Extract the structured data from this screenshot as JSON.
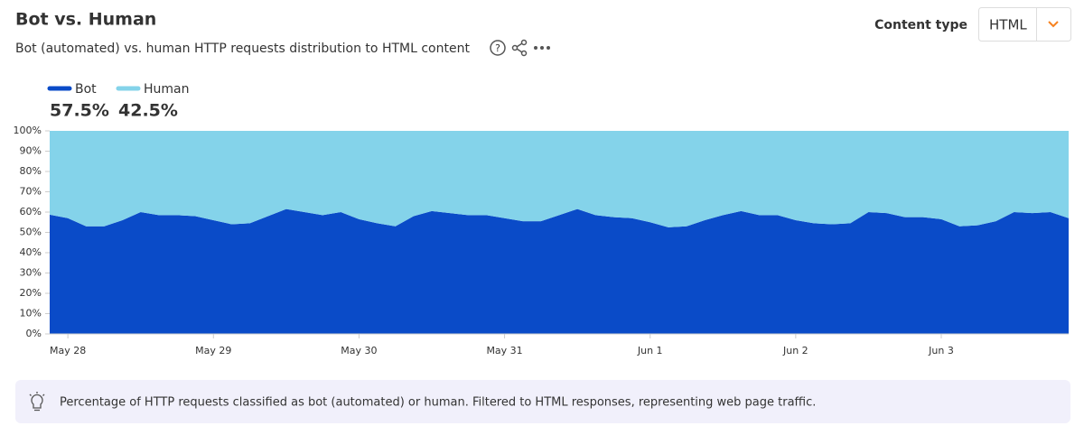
{
  "chart_data": {
    "type": "area",
    "stacked": true,
    "title": "Bot vs. Human",
    "subtitle": "Bot (automated) vs. human HTTP requests distribution to HTML content",
    "control_label": "Content type",
    "control_value": "HTML",
    "note": "Percentage of HTTP requests classified as bot (automated) or human. Filtered to HTML responses, representing web page traffic.",
    "categories": [
      null,
      "May 28",
      null,
      null,
      null,
      null,
      null,
      null,
      null,
      "May 29",
      null,
      null,
      null,
      null,
      null,
      null,
      null,
      "May 30",
      null,
      null,
      null,
      null,
      null,
      null,
      null,
      "May 31",
      null,
      null,
      null,
      null,
      null,
      null,
      null,
      "Jun 1",
      null,
      null,
      null,
      null,
      null,
      null,
      null,
      "Jun 2",
      null,
      null,
      null,
      null,
      null,
      null,
      null,
      "Jun 3",
      null,
      null,
      null,
      null,
      null,
      null,
      null
    ],
    "series": [
      {
        "name": "Bot",
        "color": "#0a4bc8",
        "summary": 57.5,
        "summary_label": "57.5%",
        "values": [
          58.7,
          57,
          53,
          53,
          56,
          60,
          58.5,
          58.5,
          58,
          56,
          54,
          54.5,
          58,
          61.5,
          60,
          58.5,
          60,
          56.5,
          54.5,
          53,
          58,
          60.5,
          59.5,
          58.5,
          58.5,
          57,
          55.5,
          55.5,
          58.5,
          61.5,
          58.5,
          57.5,
          57,
          55,
          52.5,
          53,
          56,
          58.5,
          60.5,
          58.5,
          58.5,
          56,
          54.5,
          54,
          54.5,
          60,
          59.5,
          57.5,
          57.5,
          56.5,
          53,
          53.5,
          55.5,
          60,
          59.5,
          60,
          57
        ]
      },
      {
        "name": "Human",
        "color": "#84d3ea",
        "summary": 42.5,
        "summary_label": "42.5%",
        "values": [
          41.3,
          43,
          47,
          47,
          44,
          40,
          41.5,
          41.5,
          42,
          44,
          46,
          45.5,
          42,
          38.5,
          40,
          41.5,
          40,
          43.5,
          45.5,
          47,
          42,
          39.5,
          40.5,
          41.5,
          41.5,
          43,
          44.5,
          44.5,
          41.5,
          38.5,
          41.5,
          42.5,
          43,
          45,
          47.5,
          47,
          44,
          41.5,
          39.5,
          41.5,
          41.5,
          44,
          45.5,
          46,
          45.5,
          40,
          40.5,
          42.5,
          42.5,
          43.5,
          47,
          46.5,
          44.5,
          40,
          40.5,
          40,
          43
        ]
      }
    ],
    "ylim": [
      0,
      100
    ],
    "yticks": [
      {
        "value": 0,
        "label": "0%"
      },
      {
        "value": 10,
        "label": "10%"
      },
      {
        "value": 20,
        "label": "20%"
      },
      {
        "value": 30,
        "label": "30%"
      },
      {
        "value": 40,
        "label": "40%"
      },
      {
        "value": 50,
        "label": "50%"
      },
      {
        "value": 60,
        "label": "60%"
      },
      {
        "value": 70,
        "label": "70%"
      },
      {
        "value": 80,
        "label": "80%"
      },
      {
        "value": 90,
        "label": "90%"
      },
      {
        "value": 100,
        "label": "100%"
      }
    ]
  }
}
